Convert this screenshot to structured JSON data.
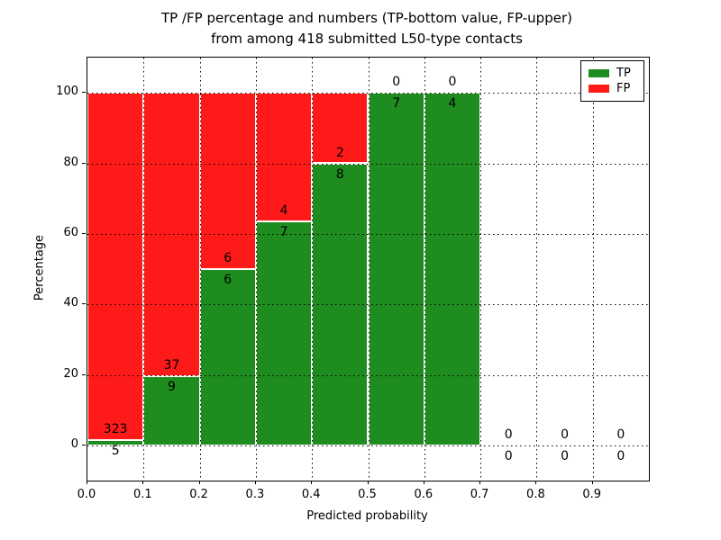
{
  "title": {
    "line1": "TP /FP percentage and numbers (TP-bottom value, FP-upper)",
    "line2": "from among 418 submitted L50-type contacts"
  },
  "chart_data": {
    "type": "bar",
    "stacked": true,
    "title": "TP /FP percentage and numbers (TP-bottom value, FP-upper) from among 418 submitted L50-type contacts",
    "xlabel": "Predicted probability",
    "ylabel": "Percentage",
    "x_ticks": [
      "0.0",
      "0.1",
      "0.2",
      "0.3",
      "0.4",
      "0.5",
      "0.6",
      "0.7",
      "0.8",
      "0.9"
    ],
    "x_tick_values": [
      0.0,
      0.1,
      0.2,
      0.3,
      0.4,
      0.5,
      0.6,
      0.7,
      0.8,
      0.9
    ],
    "y_ticks": [
      "0",
      "20",
      "40",
      "60",
      "80",
      "100"
    ],
    "y_tick_values": [
      0,
      20,
      40,
      60,
      80,
      100
    ],
    "xlim": [
      0.0,
      1.0
    ],
    "ylim": [
      -10,
      110
    ],
    "grid": "dotted",
    "legend_position": "upper right",
    "legend": [
      {
        "label": "TP",
        "color": "#1e8c1e"
      },
      {
        "label": "FP",
        "color": "#ff1a1a"
      }
    ],
    "bins": [
      {
        "x0": 0.0,
        "x1": 0.1,
        "tp": 5,
        "fp": 323,
        "tp_pct": 1.52,
        "fp_pct": 98.48,
        "has_bar": true
      },
      {
        "x0": 0.1,
        "x1": 0.2,
        "tp": 9,
        "fp": 37,
        "tp_pct": 19.57,
        "fp_pct": 80.43,
        "has_bar": true
      },
      {
        "x0": 0.2,
        "x1": 0.3,
        "tp": 6,
        "fp": 6,
        "tp_pct": 50.0,
        "fp_pct": 50.0,
        "has_bar": true
      },
      {
        "x0": 0.3,
        "x1": 0.4,
        "tp": 7,
        "fp": 4,
        "tp_pct": 63.64,
        "fp_pct": 36.36,
        "has_bar": true
      },
      {
        "x0": 0.4,
        "x1": 0.5,
        "tp": 8,
        "fp": 2,
        "tp_pct": 80.0,
        "fp_pct": 20.0,
        "has_bar": true
      },
      {
        "x0": 0.5,
        "x1": 0.6,
        "tp": 7,
        "fp": 0,
        "tp_pct": 100.0,
        "fp_pct": 0.0,
        "has_bar": true
      },
      {
        "x0": 0.6,
        "x1": 0.7,
        "tp": 4,
        "fp": 0,
        "tp_pct": 100.0,
        "fp_pct": 0.0,
        "has_bar": true
      },
      {
        "x0": 0.7,
        "x1": 0.8,
        "tp": 0,
        "fp": 0,
        "tp_pct": 0.0,
        "fp_pct": 0.0,
        "has_bar": false
      },
      {
        "x0": 0.8,
        "x1": 0.9,
        "tp": 0,
        "fp": 0,
        "tp_pct": 0.0,
        "fp_pct": 0.0,
        "has_bar": false
      },
      {
        "x0": 0.9,
        "x1": 1.0,
        "tp": 0,
        "fp": 0,
        "tp_pct": 0.0,
        "fp_pct": 0.0,
        "has_bar": false
      }
    ]
  },
  "colors": {
    "tp_green": "#1e8c1e",
    "fp_red": "#ff1a1a",
    "grid": "#000000",
    "background": "#ffffff",
    "bar_edge": "#ffffff"
  }
}
